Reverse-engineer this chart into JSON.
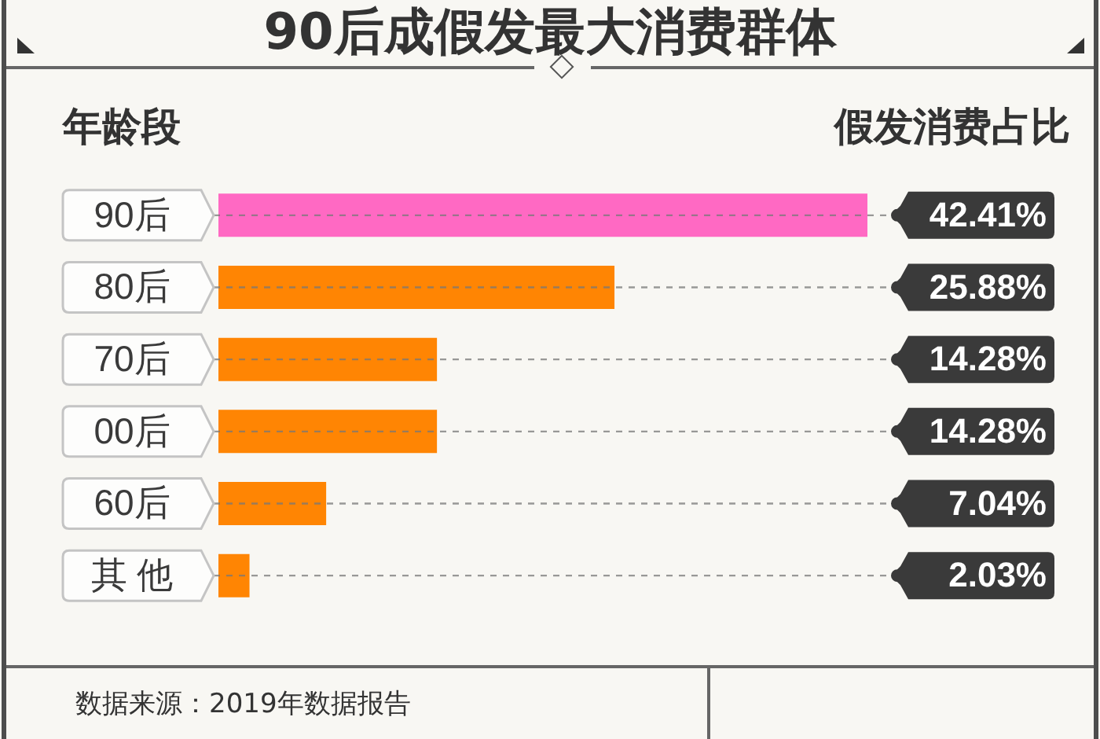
{
  "chart_data": {
    "type": "bar",
    "orientation": "horizontal",
    "title": "90后成假发最大消费群体",
    "ylabel": "年龄段",
    "xlabel": "假发消费占比",
    "categories": [
      "90后",
      "80后",
      "70后",
      "00后",
      "60后",
      "其 他"
    ],
    "values": [
      42.41,
      25.88,
      14.28,
      14.28,
      7.04,
      2.03
    ],
    "colors": [
      "#ff69c3",
      "#ff8503",
      "#ff8503",
      "#ff8503",
      "#ff8503",
      "#ff8503"
    ],
    "value_labels": [
      "42.41%",
      "25.88%",
      "14.28%",
      "14.28%",
      "7.04%",
      "2.03%"
    ],
    "grid": "y",
    "tick_labels": "y",
    "annotations": [
      "数据来源：2019年数据报告"
    ]
  }
}
